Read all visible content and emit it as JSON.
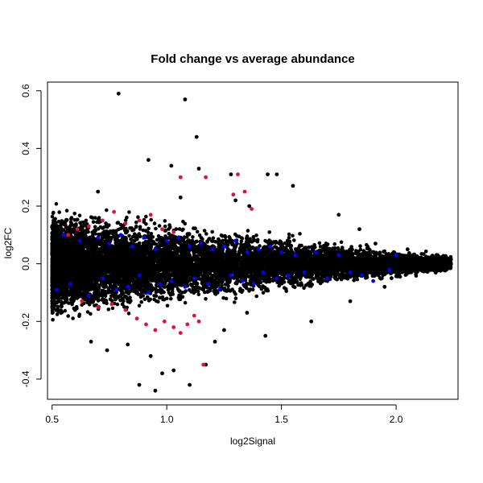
{
  "chart_data": {
    "type": "scatter",
    "title": "Fold change vs average abundance",
    "xlabel": "log2Signal",
    "ylabel": "log2FC",
    "xlim": [
      0.48,
      2.27
    ],
    "ylim": [
      -0.47,
      0.63
    ],
    "x_ticks": [
      0.5,
      1.0,
      1.5,
      2.0
    ],
    "x_tick_labels": [
      "0.5",
      "1.0",
      "1.5",
      "2.0"
    ],
    "y_ticks": [
      -0.4,
      -0.2,
      0.0,
      0.2,
      0.4,
      0.6
    ],
    "y_tick_labels": [
      "-0.4",
      "-0.2",
      "0.0",
      "0.2",
      "0.4",
      "0.6"
    ],
    "grid": false,
    "legend": "none",
    "colors": {
      "all": "#000000",
      "significant_blue": "#0000ff",
      "significant_red": "#dc143c"
    },
    "series": [
      {
        "color": "#000000",
        "bulk_band": {
          "x_from": 0.5,
          "x_to": 2.24,
          "y_center": 0.0,
          "half_width_at_start": 0.13,
          "half_width_at_end": 0.02,
          "approx_points": 9000
        },
        "points": [
          [
            0.79,
            0.59
          ],
          [
            1.08,
            0.57
          ],
          [
            1.13,
            0.44
          ],
          [
            0.92,
            0.36
          ],
          [
            1.02,
            0.34
          ],
          [
            1.14,
            0.33
          ],
          [
            1.28,
            0.31
          ],
          [
            1.44,
            0.31
          ],
          [
            1.48,
            0.31
          ],
          [
            1.36,
            0.2
          ],
          [
            1.06,
            0.23
          ],
          [
            1.55,
            0.27
          ],
          [
            1.75,
            0.17
          ],
          [
            1.84,
            0.12
          ],
          [
            0.7,
            0.25
          ],
          [
            0.98,
            -0.38
          ],
          [
            1.1,
            -0.42
          ],
          [
            0.88,
            -0.42
          ],
          [
            0.95,
            -0.44
          ],
          [
            1.17,
            -0.35
          ],
          [
            1.03,
            -0.37
          ],
          [
            1.21,
            -0.27
          ],
          [
            1.43,
            -0.25
          ],
          [
            1.63,
            -0.2
          ],
          [
            0.67,
            -0.27
          ],
          [
            0.74,
            -0.3
          ],
          [
            0.83,
            -0.28
          ],
          [
            0.93,
            -0.32
          ],
          [
            1.35,
            -0.17
          ],
          [
            1.8,
            -0.13
          ],
          [
            2.22,
            0.01
          ],
          [
            2.2,
            0.02
          ],
          [
            2.18,
            -0.01
          ],
          [
            2.12,
            0.01
          ],
          [
            2.05,
            0.05
          ],
          [
            1.98,
            -0.05
          ],
          [
            1.91,
            0.07
          ],
          [
            1.95,
            -0.08
          ],
          [
            0.52,
            0.08
          ],
          [
            0.51,
            -0.07
          ],
          [
            0.54,
            0.14
          ],
          [
            0.53,
            -0.13
          ],
          [
            0.6,
            -0.16
          ],
          [
            1.25,
            -0.23
          ],
          [
            1.3,
            0.22
          ]
        ]
      },
      {
        "color": "#0000ff",
        "points": [
          [
            0.52,
            -0.09
          ],
          [
            0.55,
            0.1
          ],
          [
            0.58,
            -0.07
          ],
          [
            0.62,
            0.08
          ],
          [
            0.66,
            -0.11
          ],
          [
            0.7,
            0.09
          ],
          [
            0.72,
            -0.05
          ],
          [
            0.75,
            0.07
          ],
          [
            0.78,
            -0.09
          ],
          [
            0.8,
            0.1
          ],
          [
            0.83,
            -0.08
          ],
          [
            0.85,
            0.06
          ],
          [
            0.88,
            -0.04
          ],
          [
            0.9,
            0.09
          ],
          [
            0.92,
            -0.1
          ],
          [
            0.95,
            0.05
          ],
          [
            0.97,
            -0.07
          ],
          [
            1.0,
            0.08
          ],
          [
            1.02,
            -0.06
          ],
          [
            1.05,
            0.09
          ],
          [
            1.08,
            -0.08
          ],
          [
            1.1,
            0.06
          ],
          [
            1.12,
            -0.05
          ],
          [
            1.15,
            0.07
          ],
          [
            1.18,
            -0.07
          ],
          [
            1.2,
            0.05
          ],
          [
            1.23,
            -0.09
          ],
          [
            1.25,
            0.06
          ],
          [
            1.28,
            -0.04
          ],
          [
            1.3,
            0.08
          ],
          [
            1.33,
            -0.06
          ],
          [
            1.35,
            0.04
          ],
          [
            1.38,
            -0.07
          ],
          [
            1.4,
            0.05
          ],
          [
            1.42,
            -0.03
          ],
          [
            1.45,
            0.06
          ],
          [
            1.48,
            -0.05
          ],
          [
            1.5,
            0.04
          ],
          [
            1.53,
            -0.04
          ],
          [
            1.56,
            0.03
          ],
          [
            1.6,
            -0.03
          ],
          [
            1.65,
            0.04
          ],
          [
            1.7,
            -0.05
          ],
          [
            1.75,
            0.03
          ],
          [
            1.8,
            -0.03
          ],
          [
            1.85,
            -0.04
          ],
          [
            1.9,
            -0.06
          ],
          [
            1.97,
            -0.02
          ],
          [
            2.0,
            0.03
          ]
        ]
      },
      {
        "color": "#dc143c",
        "points": [
          [
            1.06,
            0.3
          ],
          [
            1.31,
            0.31
          ],
          [
            1.34,
            0.25
          ],
          [
            1.17,
            0.3
          ],
          [
            1.29,
            0.24
          ],
          [
            1.37,
            0.19
          ],
          [
            0.57,
            0.1
          ],
          [
            0.61,
            0.12
          ],
          [
            0.66,
            0.13
          ],
          [
            0.72,
            0.15
          ],
          [
            0.77,
            0.18
          ],
          [
            0.82,
            0.14
          ],
          [
            0.88,
            0.15
          ],
          [
            0.93,
            0.17
          ],
          [
            0.98,
            0.12
          ],
          [
            1.03,
            0.11
          ],
          [
            0.63,
            -0.13
          ],
          [
            0.7,
            -0.15
          ],
          [
            0.76,
            -0.14
          ],
          [
            0.82,
            -0.16
          ],
          [
            0.87,
            -0.19
          ],
          [
            0.91,
            -0.21
          ],
          [
            0.95,
            -0.23
          ],
          [
            0.99,
            -0.2
          ],
          [
            1.03,
            -0.22
          ],
          [
            1.06,
            -0.24
          ],
          [
            1.09,
            -0.21
          ],
          [
            1.12,
            -0.18
          ],
          [
            1.14,
            -0.2
          ],
          [
            1.16,
            -0.35
          ]
        ]
      }
    ]
  }
}
